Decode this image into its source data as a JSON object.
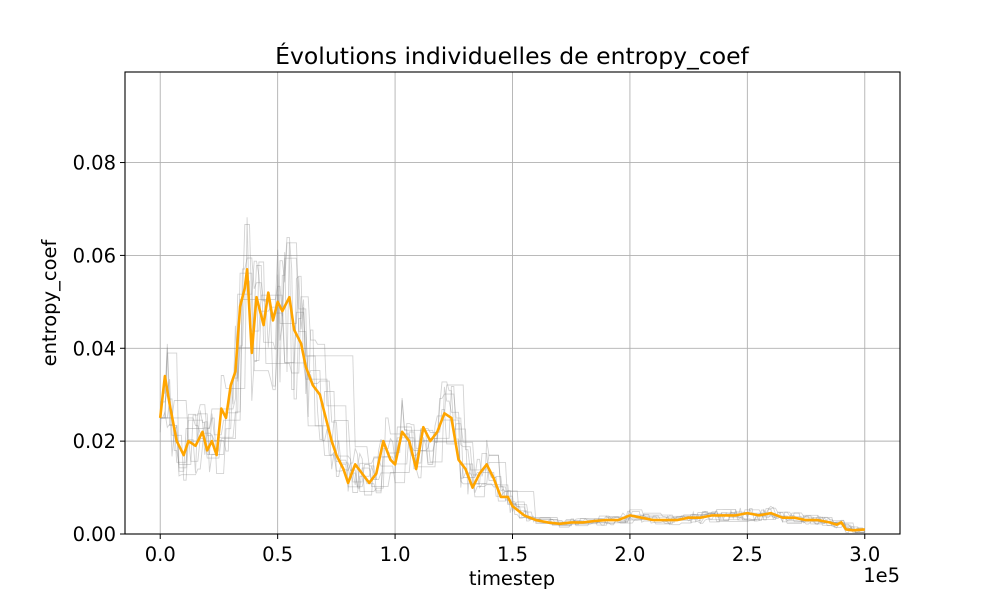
{
  "chart_data": {
    "type": "line",
    "title": "Évolutions individuelles de entropy_coef",
    "xlabel": "timestep",
    "ylabel": "entropy_coef",
    "x_offset_text": "1e5",
    "x_scale_factor": 100000,
    "xlim": [
      -0.15,
      3.15
    ],
    "ylim": [
      0.0,
      0.0995
    ],
    "x_ticks": [
      0.0,
      0.5,
      1.0,
      1.5,
      2.0,
      2.5,
      3.0
    ],
    "x_tick_labels": [
      "0.0",
      "0.5",
      "1.0",
      "1.5",
      "2.0",
      "2.5",
      "3.0"
    ],
    "y_ticks": [
      0.0,
      0.02,
      0.04,
      0.06,
      0.08
    ],
    "y_tick_labels": [
      "0.00",
      "0.02",
      "0.04",
      "0.06",
      "0.08"
    ],
    "grid": true,
    "colors": {
      "mean_series": "#FFA500",
      "individual_series": "#808080",
      "grid": "#b0b0b0",
      "axes": "#000000"
    },
    "series": [
      {
        "role": "mean",
        "x": [
          0.0,
          0.02,
          0.04,
          0.07,
          0.1,
          0.12,
          0.15,
          0.18,
          0.2,
          0.22,
          0.24,
          0.26,
          0.28,
          0.3,
          0.32,
          0.34,
          0.36,
          0.37,
          0.39,
          0.41,
          0.44,
          0.46,
          0.48,
          0.5,
          0.52,
          0.55,
          0.57,
          0.6,
          0.62,
          0.65,
          0.68,
          0.7,
          0.73,
          0.75,
          0.78,
          0.8,
          0.83,
          0.86,
          0.89,
          0.92,
          0.95,
          0.98,
          1.0,
          1.03,
          1.06,
          1.09,
          1.12,
          1.15,
          1.18,
          1.21,
          1.24,
          1.27,
          1.3,
          1.33,
          1.36,
          1.39,
          1.42,
          1.45,
          1.48,
          1.5,
          1.55,
          1.6,
          1.65,
          1.7,
          1.75,
          1.8,
          1.85,
          1.9,
          1.95,
          2.0,
          2.05,
          2.1,
          2.15,
          2.2,
          2.25,
          2.3,
          2.35,
          2.4,
          2.45,
          2.5,
          2.55,
          2.6,
          2.65,
          2.7,
          2.75,
          2.8,
          2.85,
          2.88,
          2.9,
          2.92,
          2.95,
          3.0
        ],
        "y": [
          0.025,
          0.034,
          0.028,
          0.02,
          0.017,
          0.02,
          0.019,
          0.022,
          0.018,
          0.02,
          0.017,
          0.027,
          0.025,
          0.032,
          0.035,
          0.049,
          0.053,
          0.057,
          0.039,
          0.051,
          0.045,
          0.052,
          0.046,
          0.05,
          0.048,
          0.051,
          0.044,
          0.041,
          0.036,
          0.032,
          0.03,
          0.026,
          0.02,
          0.017,
          0.014,
          0.011,
          0.015,
          0.013,
          0.011,
          0.013,
          0.02,
          0.016,
          0.015,
          0.022,
          0.02,
          0.014,
          0.023,
          0.02,
          0.022,
          0.026,
          0.025,
          0.016,
          0.014,
          0.01,
          0.013,
          0.015,
          0.012,
          0.008,
          0.008,
          0.006,
          0.004,
          0.003,
          0.0025,
          0.0022,
          0.0025,
          0.0025,
          0.0028,
          0.003,
          0.003,
          0.004,
          0.0035,
          0.003,
          0.003,
          0.003,
          0.0035,
          0.0035,
          0.004,
          0.004,
          0.004,
          0.0045,
          0.004,
          0.0045,
          0.0035,
          0.0035,
          0.003,
          0.003,
          0.0025,
          0.002,
          0.0025,
          0.001,
          0.0008,
          0.001
        ]
      }
    ]
  }
}
